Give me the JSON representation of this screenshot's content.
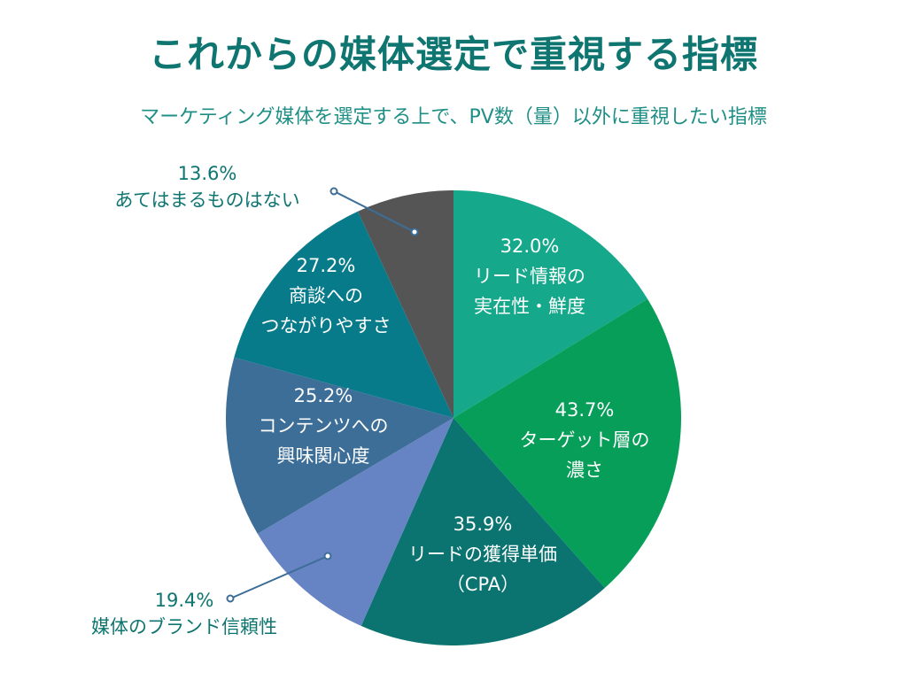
{
  "title": "これからの媒体選定で重視する指標",
  "subtitle": "マーケティング媒体を選定する上で、PV数（量）以外に重視したい指標",
  "chart_data": {
    "type": "pie",
    "unit": "%",
    "start": "top",
    "direction": "clockwise",
    "slices": [
      {
        "value": 32.0,
        "label": "32.0%",
        "lines": [
          "リード情報の",
          "実在性・鮮度"
        ],
        "color": "#15a88a"
      },
      {
        "value": 43.7,
        "label": "43.7%",
        "lines": [
          "ターゲット層の",
          "濃さ"
        ],
        "color": "#069e58"
      },
      {
        "value": 35.9,
        "label": "35.9%",
        "lines": [
          "リードの獲得単価",
          "（CPA）"
        ],
        "color": "#0b7471"
      },
      {
        "value": 19.4,
        "label": "19.4%",
        "lines": [
          "媒体のブランド信頼性"
        ],
        "color": "#6683c4"
      },
      {
        "value": 25.2,
        "label": "25.2%",
        "lines": [
          "コンテンツへの",
          "興味関心度"
        ],
        "color": "#3d6e97"
      },
      {
        "value": 27.2,
        "label": "27.2%",
        "lines": [
          "商談への",
          "つながりやすさ"
        ],
        "color": "#077b8a"
      },
      {
        "value": 13.6,
        "label": "13.6%",
        "lines": [
          "あてはまるものはない"
        ],
        "color": "#555555"
      }
    ]
  }
}
